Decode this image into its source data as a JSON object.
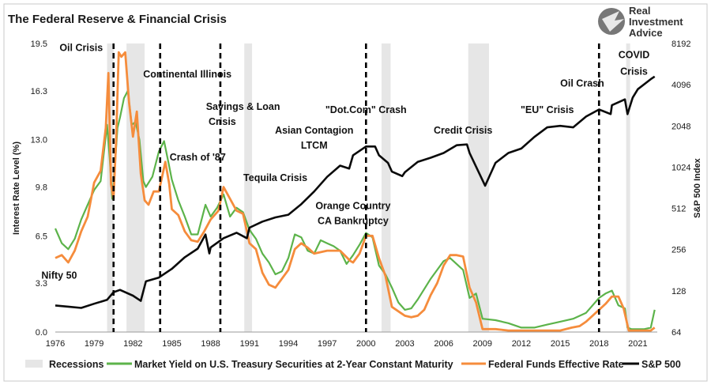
{
  "chart_data": {
    "type": "line",
    "title": "The Federal Reserve & Financial Crisis",
    "logo_text": [
      "Real",
      "Investment",
      "Advice"
    ],
    "ylabel_left": "Interest Rate Level (%)",
    "ylabel_right": "S&P 500 Index",
    "xlim": [
      1976,
      2022.5
    ],
    "ylim_left": [
      0,
      19.5
    ],
    "ylim_right_log2": [
      64,
      8192
    ],
    "x_ticks": [
      "1976",
      "1979",
      "1982",
      "1985",
      "1988",
      "1991",
      "1994",
      "1997",
      "2000",
      "2003",
      "2006",
      "2009",
      "2012",
      "2015",
      "2018",
      "2021"
    ],
    "y_ticks_left": [
      "0.0",
      "3.3",
      "6.5",
      "9.8",
      "13.0",
      "16.3",
      "19.5"
    ],
    "y_ticks_right": [
      "64",
      "128",
      "256",
      "512",
      "1024",
      "2048",
      "4096",
      "8192"
    ],
    "recessions": [
      [
        1980.0,
        1980.5
      ],
      [
        1981.5,
        1982.9
      ],
      [
        1990.6,
        1991.2
      ],
      [
        2001.2,
        2001.9
      ],
      [
        2007.9,
        2009.5
      ],
      [
        2020.1,
        2020.4
      ]
    ],
    "crisis_lines": [
      1980.5,
      1984.1,
      1988.75,
      2000.0,
      2018.0
    ],
    "annotations": [
      {
        "text": "Oil Crisis",
        "x": 1978.0,
        "y": 19.0
      },
      {
        "text": "Continental Illinois",
        "x": 1986.2,
        "y": 17.2
      },
      {
        "text": "Savings & Loan",
        "x": 1990.5,
        "y": 15.0
      },
      {
        "text": "Crisis",
        "x": 1988.9,
        "y": 14.0
      },
      {
        "text": "\"Dot.Com\" Crash",
        "x": 2000.0,
        "y": 14.8
      },
      {
        "text": "Asian Contagion",
        "x": 1996.0,
        "y": 13.4
      },
      {
        "text": "LTCM",
        "x": 1996.0,
        "y": 12.4
      },
      {
        "text": "Credit Crisis",
        "x": 2007.5,
        "y": 13.4
      },
      {
        "text": "\"EU\" Crisis",
        "x": 2014.0,
        "y": 14.8
      },
      {
        "text": "Oil Crash",
        "x": 2016.7,
        "y": 16.6
      },
      {
        "text": "COVID",
        "x": 2020.7,
        "y": 18.5
      },
      {
        "text": "Crisis",
        "x": 2020.7,
        "y": 17.4
      },
      {
        "text": "Crash of '87",
        "x": 1987.0,
        "y": 11.6
      },
      {
        "text": "Tequila Crisis",
        "x": 1993.0,
        "y": 10.2
      },
      {
        "text": "Orange Country",
        "x": 1999.0,
        "y": 8.3
      },
      {
        "text": "CA Bankruptcy",
        "x": 1999.0,
        "y": 7.3
      },
      {
        "text": "Nifty 50",
        "x": 1976.3,
        "y": 3.6
      }
    ],
    "legend": [
      "Recessions",
      "Market Yield on U.S. Treasury Securities at 2-Year Constant Maturity",
      "Federal Funds Effective Rate",
      "S&P 500"
    ],
    "colors": {
      "recession": "#e6e6e6",
      "treasury": "#5cb34a",
      "fedfunds": "#f58c3c",
      "sp500": "#0a0a0a",
      "crisis": "#000000"
    },
    "series": [
      {
        "name": "Market Yield on U.S. Treasury Securities at 2-Year Constant Maturity",
        "x": [
          1976,
          1976.5,
          1977,
          1977.5,
          1978,
          1978.5,
          1979,
          1979.5,
          1980,
          1980.2,
          1980.4,
          1980.6,
          1980.8,
          1981,
          1981.3,
          1981.6,
          1981.9,
          1982.2,
          1982.5,
          1982.8,
          1983,
          1983.5,
          1984,
          1984.4,
          1984.8,
          1985,
          1985.5,
          1986,
          1986.5,
          1987,
          1987.3,
          1987.6,
          1988,
          1988.5,
          1989,
          1989.5,
          1990,
          1990.5,
          1991,
          1991.5,
          1992,
          1992.5,
          1993,
          1993.5,
          1994,
          1994.5,
          1995,
          1995.5,
          1996,
          1996.5,
          1997,
          1997.5,
          1998,
          1998.5,
          1999,
          1999.5,
          2000,
          2000.5,
          2001,
          2001.5,
          2002,
          2002.5,
          2003,
          2003.5,
          2004,
          2004.5,
          2005,
          2005.5,
          2006,
          2006.5,
          2007,
          2007.5,
          2008,
          2008.5,
          2009,
          2010,
          2011,
          2012,
          2013,
          2014,
          2015,
          2016,
          2017,
          2018,
          2018.5,
          2019,
          2019.5,
          2020,
          2020.2,
          2020.5,
          2021,
          2021.5,
          2022,
          2022.3
        ],
        "values": [
          7.0,
          6.0,
          5.6,
          6.3,
          7.6,
          8.6,
          9.6,
          10.2,
          14.0,
          11.8,
          9.0,
          11.2,
          13.8,
          14.5,
          15.8,
          16.3,
          14.0,
          14.2,
          13.0,
          10.2,
          9.8,
          10.5,
          12.2,
          12.9,
          11.2,
          10.3,
          8.9,
          7.8,
          6.6,
          6.6,
          7.6,
          8.6,
          7.8,
          8.4,
          9.3,
          7.8,
          8.4,
          8.1,
          6.9,
          6.3,
          5.3,
          4.7,
          3.9,
          4.1,
          5.0,
          6.6,
          6.4,
          5.5,
          5.3,
          6.2,
          6.0,
          5.8,
          5.5,
          4.6,
          5.2,
          5.9,
          6.7,
          6.4,
          4.5,
          3.9,
          3.0,
          2.0,
          1.5,
          1.6,
          2.2,
          2.9,
          3.6,
          4.2,
          4.8,
          5.0,
          4.6,
          4.2,
          2.3,
          2.6,
          0.9,
          0.8,
          0.6,
          0.3,
          0.3,
          0.5,
          0.7,
          0.9,
          1.3,
          2.3,
          2.6,
          2.8,
          1.8,
          1.6,
          0.3,
          0.2,
          0.2,
          0.2,
          0.3,
          1.5
        ]
      },
      {
        "name": "Federal Funds Effective Rate",
        "x": [
          1976,
          1976.5,
          1977,
          1977.5,
          1978,
          1978.5,
          1979,
          1979.5,
          1979.9,
          1980.1,
          1980.3,
          1980.5,
          1980.7,
          1980.9,
          1981.1,
          1981.4,
          1981.7,
          1982,
          1982.3,
          1982.6,
          1982.9,
          1983.2,
          1983.6,
          1984,
          1984.5,
          1984.8,
          1985,
          1985.5,
          1986,
          1986.5,
          1987,
          1987.5,
          1988,
          1988.6,
          1989,
          1989.5,
          1990,
          1990.5,
          1991,
          1991.5,
          1992,
          1992.5,
          1993,
          1994,
          1994.5,
          1995,
          1995.5,
          1996,
          1997,
          1998,
          1998.8,
          1999,
          1999.5,
          2000,
          2000.5,
          2001,
          2001.5,
          2002,
          2003,
          2003.5,
          2004,
          2004.5,
          2005,
          2005.5,
          2006,
          2006.5,
          2007,
          2007.5,
          2008,
          2008.5,
          2009,
          2010,
          2011,
          2012,
          2013,
          2014,
          2015,
          2015.9,
          2016.5,
          2017,
          2017.5,
          2018,
          2018.5,
          2019,
          2019.5,
          2019.9,
          2020.3,
          2021,
          2022,
          2022.3
        ],
        "values": [
          5.0,
          5.2,
          4.7,
          5.5,
          6.8,
          7.8,
          10.1,
          10.9,
          13.8,
          17.5,
          10.0,
          9.0,
          13.0,
          18.9,
          18.6,
          18.9,
          15.5,
          13.2,
          14.9,
          10.7,
          8.9,
          8.6,
          9.5,
          9.5,
          11.5,
          10.0,
          8.3,
          7.9,
          6.8,
          6.2,
          6.1,
          6.8,
          7.6,
          8.2,
          9.8,
          9.0,
          8.2,
          8.0,
          6.0,
          5.6,
          4.0,
          3.2,
          3.0,
          4.2,
          5.6,
          6.0,
          5.7,
          5.3,
          5.5,
          5.5,
          4.8,
          4.7,
          5.3,
          6.5,
          6.5,
          5.0,
          3.8,
          1.7,
          1.1,
          1.0,
          1.1,
          1.5,
          2.5,
          3.3,
          4.5,
          5.2,
          5.2,
          5.1,
          3.0,
          2.0,
          0.2,
          0.2,
          0.1,
          0.1,
          0.1,
          0.1,
          0.1,
          0.3,
          0.4,
          0.7,
          1.1,
          1.5,
          1.9,
          2.4,
          2.4,
          1.6,
          0.1,
          0.1,
          0.1,
          0.3
        ]
      },
      {
        "name": "S&P 500",
        "x": [
          1976,
          1977,
          1978,
          1979,
          1980,
          1980.5,
          1981,
          1982,
          1982.6,
          1983,
          1984,
          1985,
          1986,
          1987,
          1987.6,
          1987.9,
          1988,
          1989,
          1990,
          1990.8,
          1991,
          1992,
          1993,
          1994,
          1995,
          1996,
          1997,
          1998,
          1998.7,
          1999,
          2000,
          2000.7,
          2001,
          2001.7,
          2002,
          2002.8,
          2003,
          2004,
          2005,
          2006,
          2007,
          2007.8,
          2008,
          2008.8,
          2009.2,
          2010,
          2011,
          2012,
          2013,
          2014,
          2015,
          2016,
          2017,
          2018,
          2018.9,
          2019,
          2020,
          2020.2,
          2020.6,
          2021,
          2022,
          2022.3
        ],
        "values": [
          100,
          98,
          96,
          103,
          110,
          125,
          130,
          118,
          108,
          150,
          160,
          185,
          225,
          260,
          330,
          240,
          265,
          310,
          340,
          310,
          370,
          410,
          440,
          460,
          550,
          680,
          870,
          1050,
          1000,
          1250,
          1450,
          1450,
          1250,
          1100,
          950,
          880,
          940,
          1120,
          1200,
          1300,
          1480,
          1500,
          1300,
          900,
          750,
          1100,
          1300,
          1400,
          1700,
          2000,
          2050,
          2000,
          2400,
          2700,
          2500,
          2900,
          3200,
          2500,
          3300,
          3800,
          4500,
          4700
        ]
      }
    ]
  }
}
